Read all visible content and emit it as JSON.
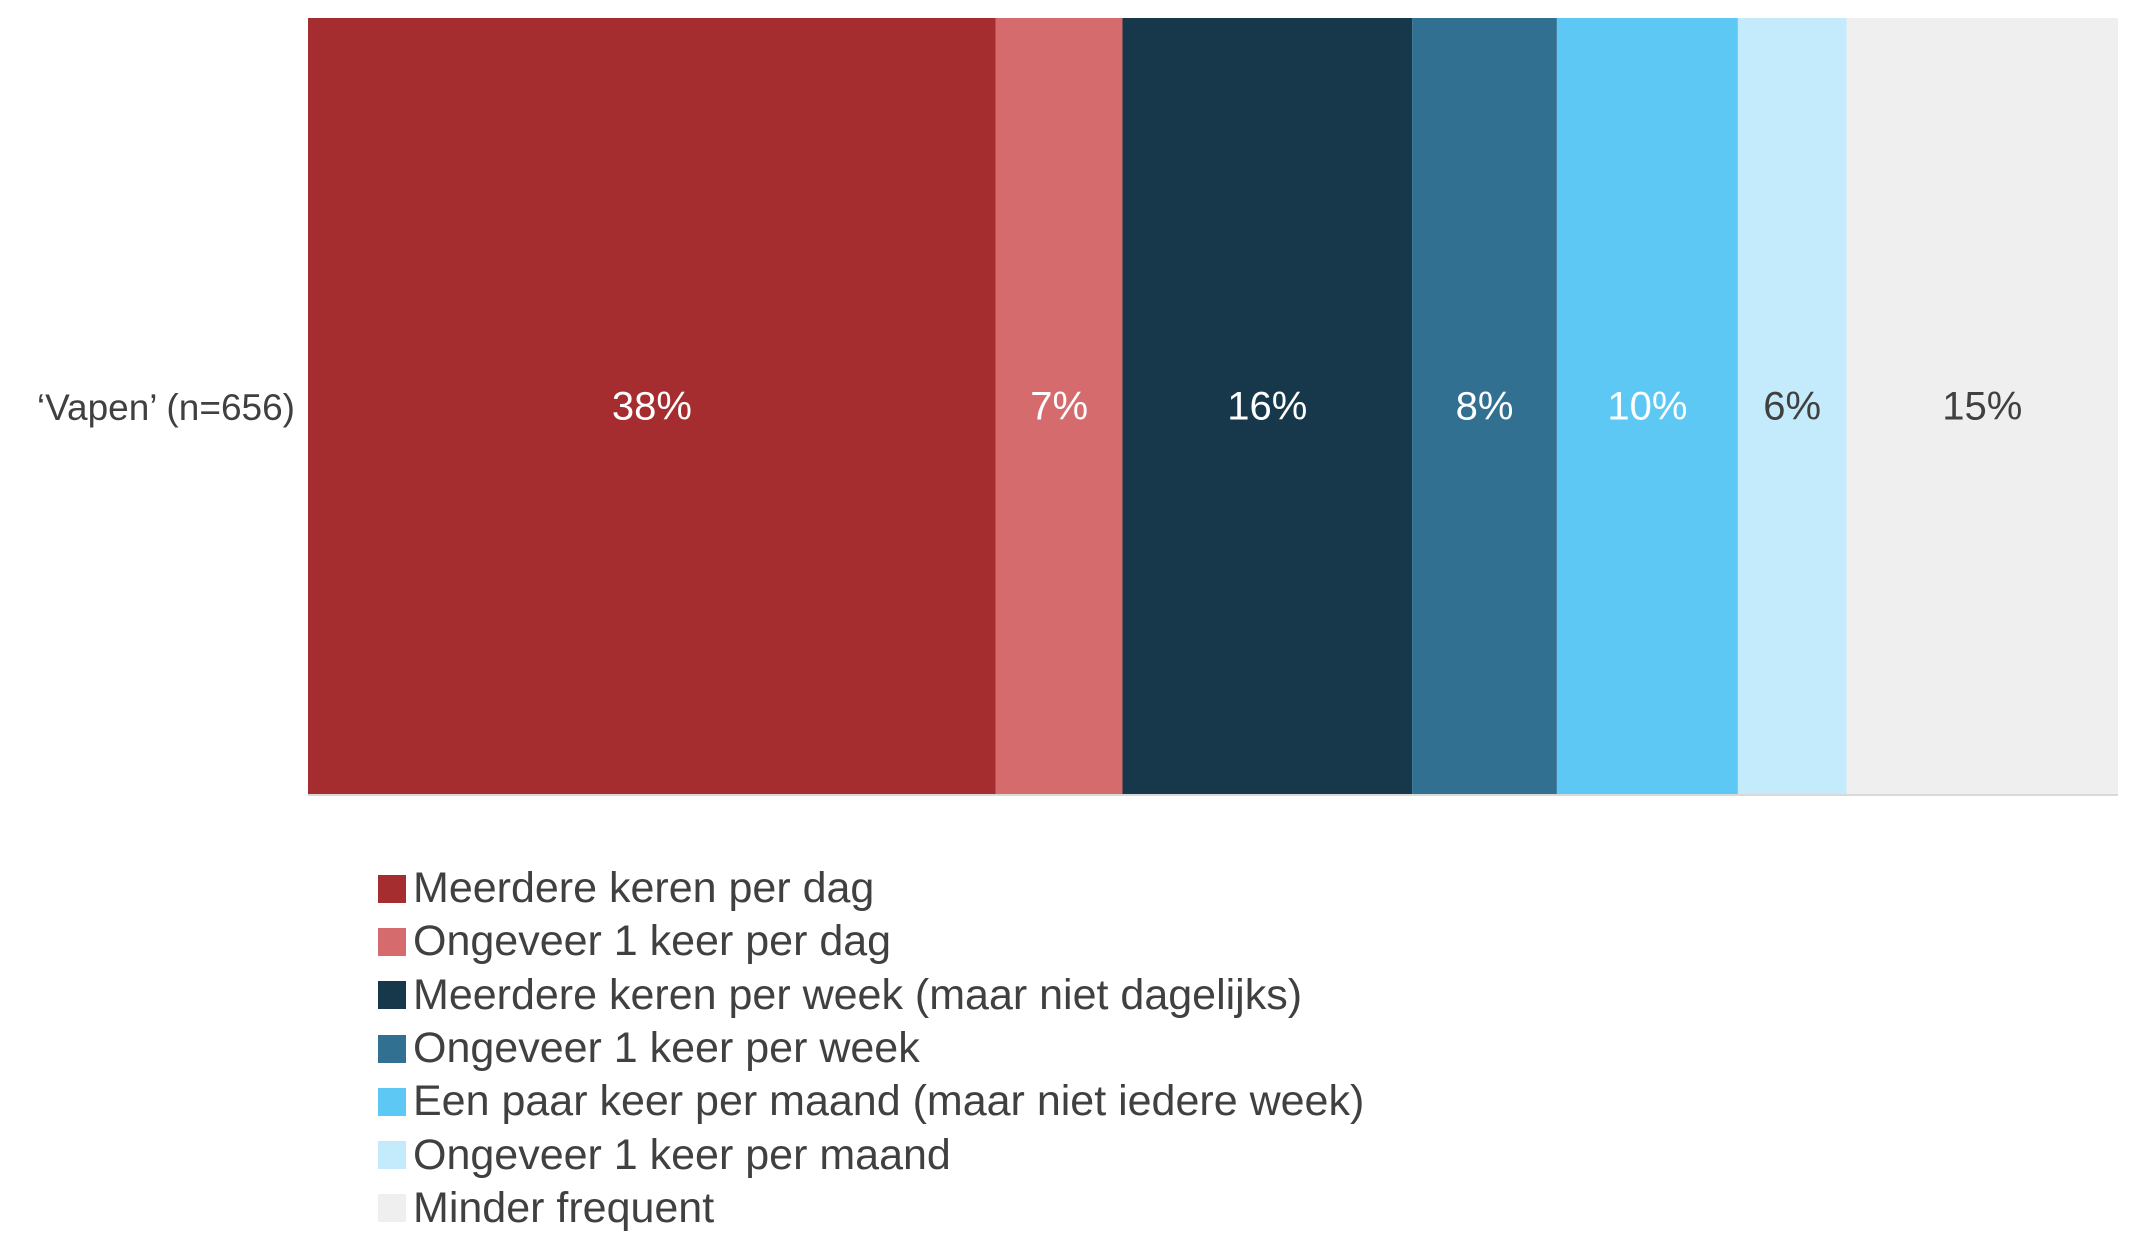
{
  "chart_data": {
    "type": "bar",
    "orientation": "horizontal",
    "stacked": true,
    "normalized_to_percent": true,
    "categories": [
      "‘Vapen’ (n=656)"
    ],
    "series": [
      {
        "name": "Meerdere keren per dag",
        "values": [
          38
        ],
        "label": "38%",
        "color": "#a52d2f",
        "label_color": "#ffffff"
      },
      {
        "name": "Ongeveer 1 keer per dag",
        "values": [
          7
        ],
        "label": "7%",
        "color": "#d56b6c",
        "label_color": "#ffffff"
      },
      {
        "name": "Meerdere keren per week (maar niet dagelijks)",
        "values": [
          16
        ],
        "label": "16%",
        "color": "#17384b",
        "label_color": "#ffffff"
      },
      {
        "name": "Ongeveer 1 keer per week",
        "values": [
          8
        ],
        "label": "8%",
        "color": "#317091",
        "label_color": "#ffffff"
      },
      {
        "name": "Een paar keer per maand (maar niet iedere week)",
        "values": [
          10
        ],
        "label": "10%",
        "color": "#5dc8f4",
        "label_color": "#ffffff"
      },
      {
        "name": "Ongeveer 1 keer per maand",
        "values": [
          6
        ],
        "label": "6%",
        "color": "#c4ebfb",
        "label_color": "#404040"
      },
      {
        "name": "Minder frequent",
        "values": [
          15
        ],
        "label": "15%",
        "color": "#efefef",
        "label_color": "#404040"
      }
    ],
    "title": "",
    "xlabel": "",
    "ylabel": "",
    "xlim": [
      0,
      100
    ],
    "grid": false,
    "legend": "bottom"
  }
}
